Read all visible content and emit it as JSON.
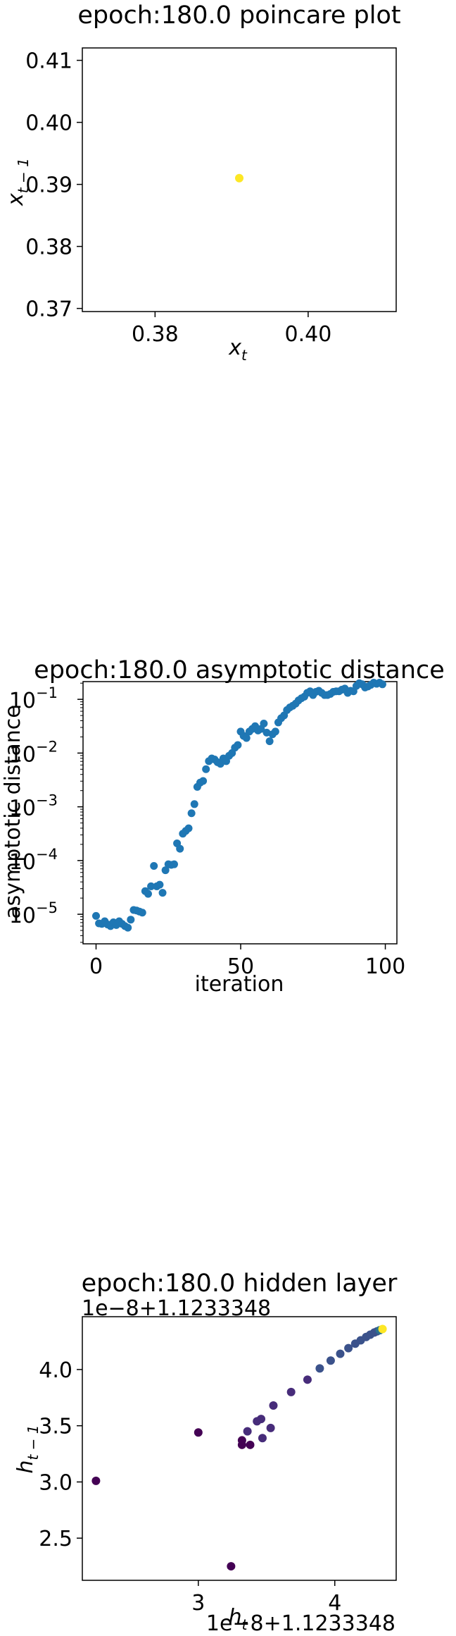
{
  "chart_data": [
    {
      "type": "scatter",
      "title": "epoch:180.0 poincare plot",
      "xlabel_base": "x",
      "xlabel_sub": "t",
      "ylabel_base": "x",
      "ylabel_sub": "t − 1",
      "xlim": [
        0.3705,
        0.4115
      ],
      "ylim": [
        0.3695,
        0.412
      ],
      "xticks": [
        0.38,
        0.4
      ],
      "xtick_labels": [
        "0.38",
        "0.40"
      ],
      "yticks": [
        0.37,
        0.38,
        0.39,
        0.4,
        0.41
      ],
      "ytick_labels": [
        "0.37",
        "0.38",
        "0.39",
        "0.40",
        "0.41"
      ],
      "points": [
        {
          "x": 0.391,
          "y": 0.391
        }
      ],
      "point_color": "#fde725"
    },
    {
      "type": "scatter",
      "title": "epoch:180.0 asymptotic distance",
      "xlabel": "iteration",
      "ylabel": "asymptotic distance",
      "yscale": "log",
      "xlim": [
        -4.5,
        104
      ],
      "ylim_log10": [
        -5.55,
        -0.67
      ],
      "xticks": [
        0,
        50,
        100
      ],
      "xtick_labels": [
        "0",
        "50",
        "100"
      ],
      "yticks_log10": [
        -5,
        -4,
        -3,
        -2,
        -1
      ],
      "ytick_mantissa": "10",
      "ytick_exponents": [
        "−5",
        "−4",
        "−3",
        "−2",
        "−1"
      ],
      "point_color": "#1f77b4",
      "x": [
        0,
        1,
        2,
        3,
        4,
        5,
        6,
        7,
        8,
        9,
        10,
        11,
        12,
        13,
        14,
        15,
        16,
        17,
        18,
        19,
        20,
        21,
        22,
        23,
        24,
        25,
        26,
        27,
        28,
        29,
        30,
        31,
        32,
        33,
        34,
        35,
        36,
        37,
        38,
        39,
        40,
        41,
        42,
        43,
        44,
        45,
        46,
        47,
        48,
        49,
        50,
        51,
        52,
        53,
        54,
        55,
        56,
        57,
        58,
        59,
        60,
        61,
        62,
        63,
        64,
        65,
        66,
        67,
        68,
        69,
        70,
        71,
        72,
        73,
        74,
        75,
        76,
        77,
        78,
        79,
        80,
        81,
        82,
        83,
        84,
        85,
        86,
        87,
        88,
        89,
        90,
        91,
        92,
        93,
        94,
        95,
        96,
        97,
        98,
        99
      ],
      "y_log10": [
        -5.03,
        -5.17,
        -5.18,
        -5.13,
        -5.19,
        -5.22,
        -5.15,
        -5.2,
        -5.13,
        -5.18,
        -5.22,
        -5.25,
        -5.1,
        -4.92,
        -4.93,
        -4.95,
        -4.97,
        -4.57,
        -4.62,
        -4.48,
        -4.1,
        -4.48,
        -4.45,
        -4.6,
        -4.18,
        -4.07,
        -4.08,
        -4.07,
        -3.68,
        -3.78,
        -3.5,
        -3.45,
        -3.4,
        -3.12,
        -2.95,
        -2.63,
        -2.55,
        -2.52,
        -2.3,
        -2.15,
        -2.1,
        -2.12,
        -2.17,
        -2.2,
        -2.1,
        -2.15,
        -2.05,
        -2.0,
        -1.9,
        -1.85,
        -1.6,
        -1.68,
        -1.72,
        -1.6,
        -1.55,
        -1.5,
        -1.58,
        -1.55,
        -1.45,
        -1.62,
        -1.78,
        -1.65,
        -1.6,
        -1.43,
        -1.35,
        -1.3,
        -1.2,
        -1.15,
        -1.12,
        -1.08,
        -1.02,
        -0.98,
        -0.95,
        -0.88,
        -0.85,
        -0.92,
        -0.86,
        -0.84,
        -0.88,
        -0.92,
        -0.92,
        -0.9,
        -0.86,
        -0.85,
        -0.85,
        -0.82,
        -0.8,
        -0.88,
        -0.84,
        -0.85,
        -0.75,
        -0.7,
        -0.72,
        -0.78,
        -0.76,
        -0.73,
        -0.69,
        -0.71,
        -0.69,
        -0.72
      ]
    },
    {
      "type": "scatter",
      "title": "epoch:180.0 hidden layer",
      "xlabel_base": "h",
      "xlabel_sub": "t",
      "ylabel_base": "h",
      "ylabel_sub": "t − 1",
      "offset_text": "1e−8+1.1233348",
      "xlim": [
        2.15,
        4.45
      ],
      "ylim": [
        2.125,
        4.47
      ],
      "xticks": [
        3,
        4
      ],
      "xtick_labels": [
        "3",
        "4"
      ],
      "yticks": [
        2.5,
        3.0,
        3.5,
        4.0
      ],
      "ytick_labels": [
        "2.5",
        "3.0",
        "3.5",
        "4.0"
      ],
      "colormap": [
        "#440154",
        "#472c7a",
        "#3b528b",
        "#2c728e",
        "#21908d",
        "#27ad81",
        "#5cc863",
        "#aadc32",
        "#fde725"
      ],
      "points": [
        {
          "x": 2.25,
          "y": 3.01,
          "c": 0.0
        },
        {
          "x": 3.24,
          "y": 2.25,
          "c": 0.0
        },
        {
          "x": 3.0,
          "y": 3.44,
          "c": 0.02
        },
        {
          "x": 3.32,
          "y": 3.33,
          "c": 0.04
        },
        {
          "x": 3.32,
          "y": 3.37,
          "c": 0.05
        },
        {
          "x": 3.38,
          "y": 3.33,
          "c": 0.06
        },
        {
          "x": 3.36,
          "y": 3.45,
          "c": 0.07
        },
        {
          "x": 3.43,
          "y": 3.54,
          "c": 0.08
        },
        {
          "x": 3.46,
          "y": 3.56,
          "c": 0.09
        },
        {
          "x": 3.47,
          "y": 3.39,
          "c": 0.1
        },
        {
          "x": 3.53,
          "y": 3.48,
          "c": 0.11
        },
        {
          "x": 3.55,
          "y": 3.68,
          "c": 0.13
        },
        {
          "x": 3.68,
          "y": 3.8,
          "c": 0.15
        },
        {
          "x": 3.8,
          "y": 3.91,
          "c": 0.17
        },
        {
          "x": 3.89,
          "y": 4.01,
          "c": 0.19
        },
        {
          "x": 3.97,
          "y": 4.08,
          "c": 0.21
        },
        {
          "x": 4.04,
          "y": 4.14,
          "c": 0.23
        },
        {
          "x": 4.1,
          "y": 4.19,
          "c": 0.25
        },
        {
          "x": 4.15,
          "y": 4.23,
          "c": 0.26
        },
        {
          "x": 4.19,
          "y": 4.26,
          "c": 0.27
        },
        {
          "x": 4.23,
          "y": 4.29,
          "c": 0.28
        },
        {
          "x": 4.26,
          "y": 4.31,
          "c": 0.29
        },
        {
          "x": 4.29,
          "y": 4.33,
          "c": 0.3
        },
        {
          "x": 4.31,
          "y": 4.34,
          "c": 0.31
        },
        {
          "x": 4.33,
          "y": 4.35,
          "c": 0.32
        },
        {
          "x": 4.35,
          "y": 4.36,
          "c": 1.0
        }
      ]
    }
  ]
}
